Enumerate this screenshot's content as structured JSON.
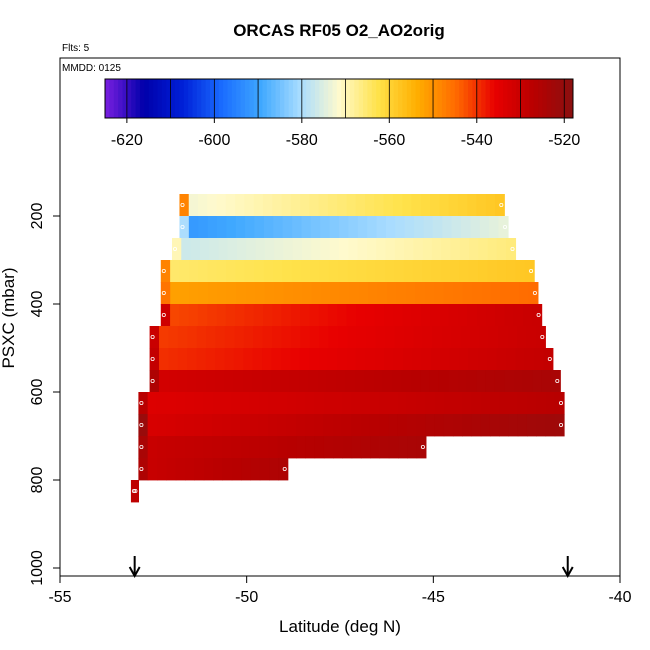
{
  "chart_data": {
    "type": "heatmap",
    "title": "ORCAS RF05 O2_AO2orig",
    "annotations": {
      "flights": "Flts: 5",
      "date": "MMDD: 0125"
    },
    "xlabel": "Latitude (deg N)",
    "ylabel": "PSXC (mbar)",
    "xlim": [
      -55,
      -40
    ],
    "ylim": [
      1000,
      0
    ],
    "x_ticks": [
      -55,
      -50,
      -45,
      -40
    ],
    "x_tick_labels": [
      "-55",
      "-50",
      "-45",
      "-40"
    ],
    "y_ticks": [
      200,
      400,
      600,
      800,
      1000
    ],
    "y_tick_labels": [
      "200",
      "400",
      "600",
      "800",
      "1000"
    ],
    "colorbar": {
      "range": [
        -625,
        -518
      ],
      "ticks": [
        -620,
        -600,
        -580,
        -560,
        -540,
        -520
      ],
      "tick_labels": [
        "-620",
        "-600",
        "-580",
        "-560",
        "-540",
        "-520"
      ],
      "colors": [
        "#7a1fe0",
        "#0000aa",
        "#0020d8",
        "#1a6cff",
        "#3fa8ff",
        "#a8dcff",
        "#fffacd",
        "#ffe24a",
        "#ffae00",
        "#ff6a00",
        "#e80000",
        "#b80000",
        "#8a1010"
      ]
    },
    "arrows_at_latitude": [
      -53,
      -41.4
    ],
    "rows": [
      {
        "p": [
          150,
          200
        ],
        "x0": -51.8,
        "x1": -43.1,
        "v0": -573,
        "v1": -558,
        "edge": -548
      },
      {
        "p": [
          200,
          250
        ],
        "x0": -51.8,
        "x1": -43.0,
        "v0": -592,
        "v1": -574,
        "edge": -580
      },
      {
        "p": [
          250,
          300
        ],
        "x0": -52.0,
        "x1": -42.8,
        "v0": -577,
        "v1": -566,
        "edge": -570
      },
      {
        "p": [
          300,
          350
        ],
        "x0": -52.3,
        "x1": -42.3,
        "v0": -565,
        "v1": -558,
        "edge": -548
      },
      {
        "p": [
          350,
          400
        ],
        "x0": -52.3,
        "x1": -42.2,
        "v0": -552,
        "v1": -545,
        "edge": -546
      },
      {
        "p": [
          400,
          450
        ],
        "x0": -52.3,
        "x1": -42.1,
        "v0": -542,
        "v1": -530,
        "edge": -531
      },
      {
        "p": [
          450,
          500
        ],
        "x0": -52.6,
        "x1": -42.0,
        "v0": -541,
        "v1": -530,
        "edge": -530
      },
      {
        "p": [
          500,
          550
        ],
        "x0": -52.6,
        "x1": -41.8,
        "v0": -540,
        "v1": -529,
        "edge": -529
      },
      {
        "p": [
          550,
          600
        ],
        "x0": -52.6,
        "x1": -41.6,
        "v0": -532,
        "v1": -524,
        "edge": -525
      },
      {
        "p": [
          600,
          650
        ],
        "x0": -52.9,
        "x1": -41.5,
        "v0": -534,
        "v1": -527,
        "edge": -527
      },
      {
        "p": [
          650,
          700
        ],
        "x0": -52.9,
        "x1": -41.5,
        "v0": -533,
        "v1": -522,
        "edge": -521
      },
      {
        "p": [
          700,
          750
        ],
        "x0": -52.9,
        "x1": -45.2,
        "v0": -530,
        "v1": -524,
        "edge": -524
      },
      {
        "p": [
          750,
          800
        ],
        "x0": -52.9,
        "x1": -48.9,
        "v0": -530,
        "v1": -525,
        "edge": -525
      },
      {
        "p": [
          800,
          850
        ],
        "x0": -53.1,
        "x1": -52.9,
        "v0": -528,
        "v1": -528,
        "edge": -528
      }
    ],
    "grid": false,
    "legend": "colorbar top"
  }
}
